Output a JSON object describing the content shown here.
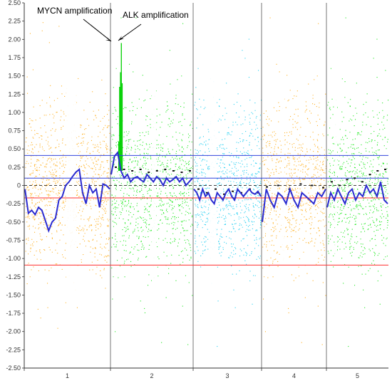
{
  "chart_data": {
    "type": "scatter",
    "title": "",
    "xlabel": "",
    "ylabel": "",
    "ylim": [
      -2.5,
      2.5
    ],
    "y_ticks": [
      "2.50",
      "2.25",
      "2.00",
      "1.75",
      "1.50",
      "1.25",
      "1.00",
      "0.75",
      "0.50",
      "0.25",
      "0",
      "-0.25",
      "-0.50",
      "-0.75",
      "-1.00",
      "-1.25",
      "-1.50",
      "-1.75",
      "-2.00",
      "-2.25",
      "-2.50"
    ],
    "chromosomes": [
      {
        "label": "1",
        "color": "#FFA500"
      },
      {
        "label": "2",
        "color": "#00E600"
      },
      {
        "label": "3",
        "color": "#00C8F0"
      },
      {
        "label": "4",
        "color": "#FFA500"
      },
      {
        "label": "5",
        "color": "#00E600"
      }
    ],
    "reference_lines": [
      {
        "value": 0.41,
        "color": "#3344DD"
      },
      {
        "value": 0.1,
        "color": "#3344DD"
      },
      {
        "value": -0.17,
        "color": "#FF3030"
      },
      {
        "value": -1.09,
        "color": "#FF3030"
      }
    ],
    "annotations": [
      {
        "text": "MYCN amplification"
      },
      {
        "text": "ALK amplification"
      }
    ],
    "segment_line_color": "#2B2BD0",
    "segment_means": [
      {
        "chromosome": "1",
        "y": [
          -0.05,
          -0.38,
          -0.34,
          -0.4,
          -0.3,
          -0.34,
          -0.48,
          -0.62,
          -0.5,
          -0.45,
          -0.2,
          -0.15,
          0.0,
          0.05,
          0.12,
          0.18,
          0.22,
          -0.1,
          -0.25,
          0.0,
          -0.1,
          -0.05,
          -0.3,
          0.02,
          0.0,
          -0.05
        ]
      },
      {
        "chromosome": "2",
        "y": [
          0.15,
          0.4,
          0.45,
          0.2,
          0.1,
          0.15,
          0.05,
          0.1,
          0.12,
          0.08,
          0.05,
          0.15,
          0.1,
          0.05,
          0.12,
          0.08,
          0.0,
          0.1,
          0.05,
          0.08,
          0.12,
          0.05,
          0.1,
          0.0,
          0.05,
          0.1
        ]
      },
      {
        "chromosome": "3",
        "y": [
          -0.05,
          -0.1,
          -0.2,
          -0.05,
          -0.15,
          -0.1,
          -0.2,
          -0.25,
          -0.1,
          -0.15,
          -0.2,
          -0.1,
          -0.05,
          -0.15,
          -0.2,
          -0.05,
          -0.1,
          -0.15,
          -0.1,
          -0.05,
          -0.1,
          -0.12,
          -0.08,
          -0.15
        ]
      },
      {
        "chromosome": "4",
        "y": [
          -0.5,
          -0.05,
          -0.2,
          -0.3,
          -0.1,
          -0.15,
          -0.25,
          -0.05,
          -0.2,
          -0.3,
          -0.1,
          -0.15,
          -0.2,
          -0.25,
          -0.1,
          -0.15,
          -0.05
        ]
      },
      {
        "chromosome": "5",
        "y": [
          -0.3,
          -0.1,
          -0.2,
          -0.05,
          -0.15,
          -0.25,
          -0.1,
          -0.05,
          -0.2,
          -0.1,
          -0.15,
          0.0,
          -0.1,
          -0.05,
          -0.15,
          0.05,
          -0.2,
          -0.25
        ]
      }
    ],
    "secondary_trace": [
      {
        "chromosome": "2",
        "y": [
          0.25,
          0.22,
          0.2,
          0.22,
          0.18,
          0.2,
          0.22,
          0.2,
          0.18,
          0.2
        ]
      },
      {
        "chromosome": "3",
        "y": [
          -0.05,
          -0.1,
          -0.05,
          -0.12,
          -0.08,
          -0.1,
          -0.05,
          -0.1
        ]
      },
      {
        "chromosome": "4",
        "y": [
          -0.02,
          0.0,
          -0.05,
          0.02,
          0.0,
          -0.03
        ]
      },
      {
        "chromosome": "5",
        "y": [
          0.05,
          0.0,
          0.08,
          0.1,
          0.05,
          0.15,
          0.2,
          0.22
        ]
      }
    ],
    "amplification_peaks": [
      {
        "chromosome": "2",
        "y": [
          0.6,
          1.35,
          1.55,
          1.95,
          1.4
        ]
      }
    ]
  }
}
